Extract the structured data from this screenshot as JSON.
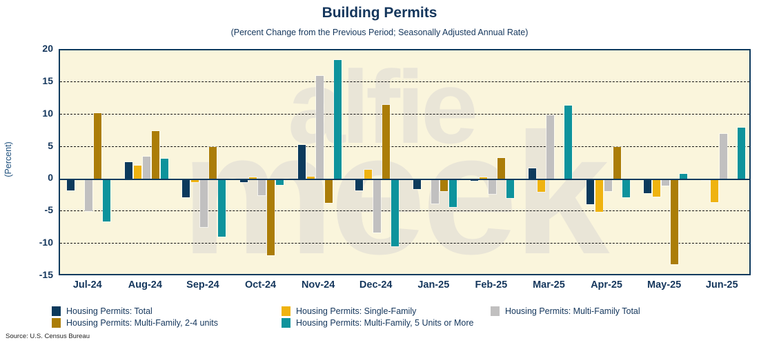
{
  "title": "Building Permits",
  "subtitle": "(Percent Change from the Previous Period; Seasonally Adjusted Annual Rate)",
  "source": "Source: U.S. Census Bureau",
  "watermark": {
    "line1": "alfie",
    "line2": "meek"
  },
  "chart_data": {
    "type": "bar",
    "title": "Building Permits",
    "subtitle": "(Percent Change from the Previous Period; Seasonally Adjusted Annual Rate)",
    "xlabel": "",
    "ylabel": "(Percent)",
    "ylim": [
      -15,
      20
    ],
    "yticks": [
      20,
      15,
      10,
      5,
      0,
      -5,
      -10,
      -15
    ],
    "grid": "horizontal-dashed",
    "legend_position": "bottom",
    "plot_background": "#faf5dc",
    "axis_color": "#0e3a5e",
    "categories": [
      "Jul-24",
      "Aug-24",
      "Sep-24",
      "Oct-24",
      "Nov-24",
      "Dec-24",
      "Jan-25",
      "Feb-25",
      "Mar-25",
      "Apr-25",
      "May-25",
      "Jun-25"
    ],
    "series": [
      {
        "name": "Housing Permits: Total",
        "color": "#0c3a5c",
        "values": [
          -1.7,
          2.7,
          -2.7,
          -0.4,
          5.4,
          -1.7,
          -1.4,
          -0.2,
          1.8,
          -3.8,
          -2.1,
          -0.1
        ]
      },
      {
        "name": "Housing Permits: Single-Family",
        "color": "#efb310",
        "values": [
          0.0,
          2.2,
          -0.4,
          0.4,
          0.5,
          1.5,
          -0.1,
          0.4,
          -1.9,
          -5.0,
          -2.6,
          -3.5
        ]
      },
      {
        "name": "Housing Permits: Multi-Family Total",
        "color": "#c1c0c0",
        "values": [
          -4.9,
          3.6,
          -7.3,
          -2.4,
          16.0,
          -8.2,
          -3.7,
          -2.2,
          10.0,
          -1.8,
          -0.9,
          7.1
        ]
      },
      {
        "name": "Housing Permits: Multi-Family, 2-4 units",
        "color": "#ab7d08",
        "values": [
          10.3,
          7.5,
          5.1,
          -11.7,
          -3.6,
          11.6,
          -1.8,
          3.4,
          0.0,
          5.1,
          -13.1,
          0.0
        ]
      },
      {
        "name": "Housing Permits: Multi-Family, 5 Units or More",
        "color": "#0e939c",
        "values": [
          -6.5,
          3.3,
          -8.8,
          -0.8,
          18.5,
          -10.3,
          -4.2,
          -2.8,
          11.5,
          -2.7,
          0.9,
          8.0
        ]
      }
    ]
  }
}
